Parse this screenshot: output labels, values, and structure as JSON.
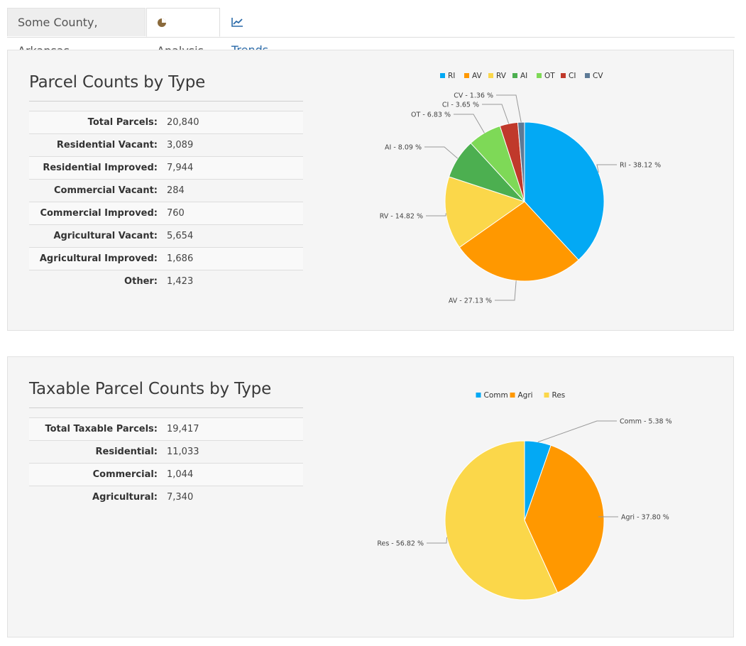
{
  "tabs": {
    "county": "Some County, Arkansas",
    "analysis": "Analysis",
    "trends": "Trends"
  },
  "colors": {
    "blue": "#03a9f4",
    "orange": "#ff9800",
    "yellow": "#fbd74a",
    "dark_green": "#4caf50",
    "light_green": "#7ed957",
    "red": "#c0392b",
    "slate": "#5d7a96"
  },
  "panel1": {
    "title": "Parcel Counts by Type",
    "rows": [
      {
        "label": "Total Parcels:",
        "value": "20,840"
      },
      {
        "label": "Residential Vacant:",
        "value": "3,089"
      },
      {
        "label": "Residential Improved:",
        "value": "7,944"
      },
      {
        "label": "Commercial Vacant:",
        "value": "284"
      },
      {
        "label": "Commercial Improved:",
        "value": "760"
      },
      {
        "label": "Agricultural Vacant:",
        "value": "5,654"
      },
      {
        "label": "Agricultural Improved:",
        "value": "1,686"
      },
      {
        "label": "Other:",
        "value": "1,423"
      }
    ]
  },
  "panel2": {
    "title": "Taxable Parcel Counts by Type",
    "rows": [
      {
        "label": "Total Taxable Parcels:",
        "value": "19,417"
      },
      {
        "label": "Residential:",
        "value": "11,033"
      },
      {
        "label": "Commercial:",
        "value": "1,044"
      },
      {
        "label": "Agricultural:",
        "value": "7,340"
      }
    ]
  },
  "chart_data": [
    {
      "type": "pie",
      "legend_position": "top",
      "slices": [
        {
          "name": "RI",
          "value": 38.12,
          "label": "RI - 38.12 %",
          "color": "#03a9f4"
        },
        {
          "name": "AV",
          "value": 27.13,
          "label": "AV - 27.13 %",
          "color": "#ff9800"
        },
        {
          "name": "RV",
          "value": 14.82,
          "label": "RV - 14.82 %",
          "color": "#fbd74a"
        },
        {
          "name": "AI",
          "value": 8.09,
          "label": "AI - 8.09 %",
          "color": "#4caf50"
        },
        {
          "name": "OT",
          "value": 6.83,
          "label": "OT - 6.83 %",
          "color": "#7ed957"
        },
        {
          "name": "CI",
          "value": 3.65,
          "label": "CI - 3.65 %",
          "color": "#c0392b"
        },
        {
          "name": "CV",
          "value": 1.36,
          "label": "CV - 1.36 %",
          "color": "#5d7a96"
        }
      ]
    },
    {
      "type": "pie",
      "legend_position": "top",
      "slices": [
        {
          "name": "Comm",
          "value": 5.38,
          "label": "Comm - 5.38 %",
          "color": "#03a9f4"
        },
        {
          "name": "Agri",
          "value": 37.8,
          "label": "Agri - 37.80 %",
          "color": "#ff9800"
        },
        {
          "name": "Res",
          "value": 56.82,
          "label": "Res - 56.82 %",
          "color": "#fbd74a"
        }
      ]
    }
  ]
}
